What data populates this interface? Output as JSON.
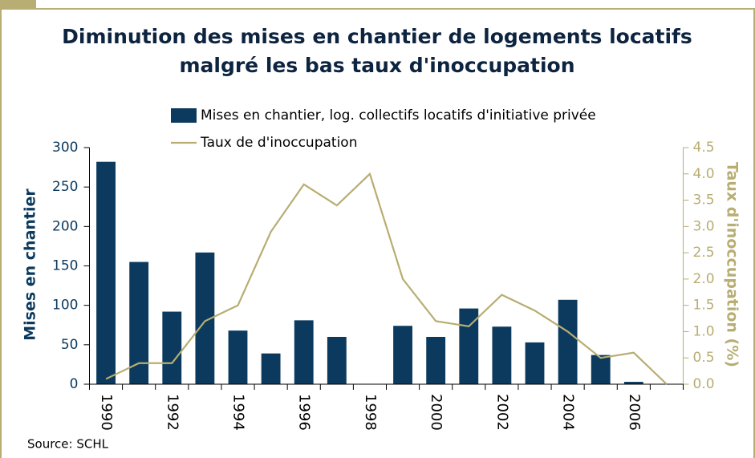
{
  "chart_data": {
    "type": "bar_line",
    "title": [
      "Diminution des mises en chantier de logements locatifs",
      "malgré les bas taux d'inoccupation"
    ],
    "source": "Source: SCHL",
    "ylabel": "Mises en chantier",
    "y2label": "Taux d'inoccupation (%)",
    "categories": [
      "1990",
      null,
      "1992",
      null,
      "1994",
      null,
      "1996",
      null,
      "1998",
      null,
      "2000",
      null,
      "2002",
      null,
      "2004",
      null,
      "2006",
      null
    ],
    "series": [
      {
        "name": "Mises en chantier, log. collectifs locatifs d'initiative privée",
        "type": "bar",
        "color": "#0b3a5e",
        "values": [
          282,
          155,
          92,
          167,
          68,
          39,
          81,
          60,
          null,
          74,
          60,
          96,
          73,
          53,
          107,
          37,
          3,
          null
        ]
      },
      {
        "name": "Taux de d'inoccupation",
        "type": "line",
        "axis": "y2",
        "color": "#b8ad72",
        "values": [
          0.1,
          0.4,
          0.4,
          1.2,
          1.5,
          2.9,
          3.8,
          3.4,
          4.0,
          2.0,
          1.2,
          1.1,
          1.7,
          1.4,
          1.0,
          0.5,
          0.6,
          0.0
        ]
      }
    ],
    "ylim": [
      0,
      300
    ],
    "yticks": [
      0,
      50,
      100,
      150,
      200,
      250,
      300
    ],
    "y2lim": [
      0,
      4.5
    ],
    "y2ticks": [
      {
        "value": 0,
        "label": "0.0"
      },
      {
        "value": 0.5,
        "label": "0.5"
      },
      {
        "value": 1,
        "label": "1.0"
      },
      {
        "value": 1.5,
        "label": "1.5"
      },
      {
        "value": 2,
        "label": "2.0"
      },
      {
        "value": 2.5,
        "label": "2.5"
      },
      {
        "value": 3,
        "label": "3.0"
      },
      {
        "value": 3.5,
        "label": "3.5"
      },
      {
        "value": 4,
        "label": "4.0"
      },
      {
        "value": 4.5,
        "label": "4.5"
      }
    ]
  }
}
